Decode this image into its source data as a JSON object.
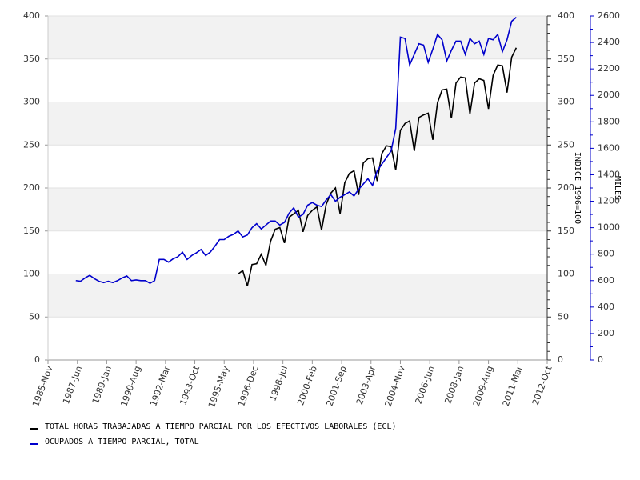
{
  "chart_data": {
    "type": "line",
    "x": [
      "1987-05",
      "1987-08",
      "1987-11",
      "1988-02",
      "1988-05",
      "1988-08",
      "1988-11",
      "1989-02",
      "1989-05",
      "1989-08",
      "1989-11",
      "1990-02",
      "1990-05",
      "1990-08",
      "1990-11",
      "1991-02",
      "1991-05",
      "1991-08",
      "1991-11",
      "1992-02",
      "1992-05",
      "1992-08",
      "1992-11",
      "1993-02",
      "1993-05",
      "1993-08",
      "1993-11",
      "1994-02",
      "1994-05",
      "1994-08",
      "1994-11",
      "1995-02",
      "1995-05",
      "1995-08",
      "1995-11",
      "1996-02",
      "1996-05",
      "1996-08",
      "1996-11",
      "1997-02",
      "1997-05",
      "1997-08",
      "1997-11",
      "1998-02",
      "1998-05",
      "1998-08",
      "1998-11",
      "1999-02",
      "1999-05",
      "1999-08",
      "1999-11",
      "2000-02",
      "2000-05",
      "2000-08",
      "2000-11",
      "2001-02",
      "2001-05",
      "2001-08",
      "2001-11",
      "2002-02",
      "2002-05",
      "2002-08",
      "2002-11",
      "2003-02",
      "2003-05",
      "2003-08",
      "2003-11",
      "2004-02",
      "2004-05",
      "2004-08",
      "2004-11",
      "2005-02",
      "2005-05",
      "2005-08",
      "2005-11",
      "2006-02",
      "2006-05",
      "2006-08",
      "2006-11",
      "2007-02",
      "2007-05",
      "2007-08",
      "2007-11",
      "2008-02",
      "2008-05",
      "2008-08",
      "2008-11",
      "2009-02",
      "2009-05",
      "2009-08",
      "2009-11",
      "2010-02",
      "2010-05",
      "2010-08",
      "2010-11",
      "2011-02"
    ],
    "series": [
      {
        "name": "TOTAL HORAS TRABAJADAS A TIEMPO PARCIAL POR LOS EFECTIVOS LABORALES (ECL)",
        "color": "#000000",
        "axis": "y",
        "values": [
          null,
          null,
          null,
          null,
          null,
          null,
          null,
          null,
          null,
          null,
          null,
          null,
          null,
          null,
          null,
          null,
          null,
          null,
          null,
          null,
          null,
          null,
          null,
          null,
          null,
          null,
          null,
          null,
          null,
          null,
          null,
          null,
          null,
          null,
          null,
          100,
          104,
          86,
          111,
          112,
          123,
          110,
          138,
          152,
          154,
          136,
          166,
          170,
          174,
          149,
          168,
          174,
          178,
          151,
          181,
          194,
          200,
          170,
          206,
          217,
          220,
          192,
          229,
          234,
          235,
          208,
          240,
          249,
          248,
          221,
          267,
          275,
          278,
          243,
          282,
          285,
          287,
          256,
          299,
          314,
          315,
          281,
          322,
          329,
          328,
          286,
          322,
          327,
          325,
          292,
          331,
          343,
          342,
          311,
          352,
          363
        ]
      },
      {
        "name": "OCUPADOS A TIEMPO PARCIAL, TOTAL",
        "color": "#0000cc",
        "axis": "y2",
        "values": [
          600,
          595,
          620,
          640,
          615,
          595,
          585,
          595,
          585,
          600,
          620,
          635,
          600,
          605,
          600,
          600,
          580,
          600,
          760,
          760,
          740,
          765,
          780,
          815,
          760,
          790,
          810,
          835,
          790,
          815,
          860,
          910,
          910,
          935,
          950,
          975,
          930,
          945,
          1000,
          1030,
          990,
          1020,
          1050,
          1050,
          1020,
          1040,
          1110,
          1150,
          1080,
          1100,
          1170,
          1190,
          1170,
          1160,
          1210,
          1250,
          1200,
          1230,
          1250,
          1270,
          1240,
          1290,
          1330,
          1370,
          1320,
          1430,
          1480,
          1530,
          1580,
          1750,
          2440,
          2430,
          2230,
          2310,
          2390,
          2380,
          2250,
          2350,
          2460,
          2420,
          2260,
          2340,
          2410,
          2410,
          2310,
          2430,
          2390,
          2410,
          2310,
          2430,
          2420,
          2460,
          2330,
          2420,
          2560,
          2590
        ]
      }
    ],
    "xlim": [
      "1985-11",
      "2012-10"
    ],
    "xticks": [
      {
        "value": "1985-11",
        "label": "1985-Nov"
      },
      {
        "value": "1987-06",
        "label": "1987-Jun"
      },
      {
        "value": "1989-01",
        "label": "1989-Jan"
      },
      {
        "value": "1990-08",
        "label": "1990-Aug"
      },
      {
        "value": "1992-03",
        "label": "1992-Mar"
      },
      {
        "value": "1993-10",
        "label": "1993-Oct"
      },
      {
        "value": "1995-05",
        "label": "1995-May"
      },
      {
        "value": "1996-12",
        "label": "1996-Dec"
      },
      {
        "value": "1998-07",
        "label": "1998-Jul"
      },
      {
        "value": "2000-02",
        "label": "2000-Feb"
      },
      {
        "value": "2001-09",
        "label": "2001-Sep"
      },
      {
        "value": "2003-04",
        "label": "2003-Apr"
      },
      {
        "value": "2004-11",
        "label": "2004-Nov"
      },
      {
        "value": "2006-06",
        "label": "2006-Jun"
      },
      {
        "value": "2008-01",
        "label": "2008-Jan"
      },
      {
        "value": "2009-08",
        "label": "2009-Aug"
      },
      {
        "value": "2011-03",
        "label": "2011-Mar"
      },
      {
        "value": "2012-10",
        "label": "2012-Oct"
      }
    ],
    "ylim": [
      0,
      400
    ],
    "yticks": [
      0,
      50,
      100,
      150,
      200,
      250,
      300,
      350,
      400
    ],
    "y2lim": [
      0,
      2600
    ],
    "y2ticks": [
      0,
      200,
      400,
      600,
      800,
      1000,
      1200,
      1400,
      1600,
      1800,
      2000,
      2200,
      2400,
      2600
    ],
    "ylabel": "INDICE 1996=100",
    "y2label": "MILES",
    "y2color": "#0000cc",
    "grid": true
  }
}
